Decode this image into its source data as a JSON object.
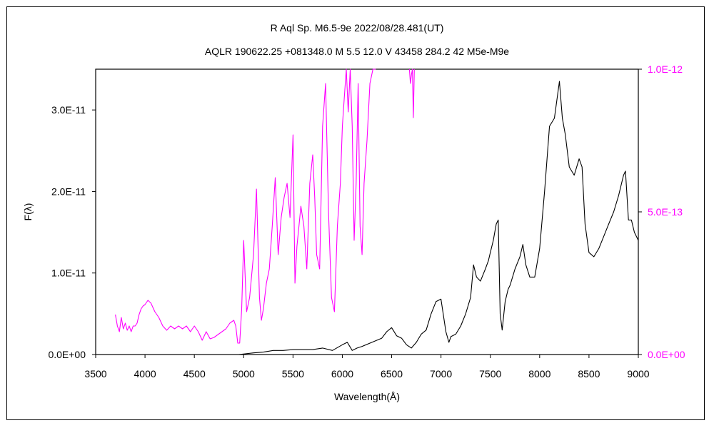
{
  "chart_data": {
    "type": "line",
    "title": "R Aql    Sp. M6.5-9e    2022/08/28.481(UT)",
    "subtitle": "AQLR 190622.25 +081348.0 M 5.5 12.0 V 43458 284.2 42 M5e-M9e",
    "xlabel": "Wavelength(Å)",
    "ylabel": "F(λ)",
    "xlim": [
      3500,
      9000
    ],
    "xticks": [
      "3500",
      "4000",
      "4500",
      "5000",
      "5500",
      "6000",
      "6500",
      "7000",
      "7500",
      "8000",
      "8500",
      "9000"
    ],
    "ylim_left": [
      0,
      3.5e-11
    ],
    "yticks_left": [
      "0.0E+00",
      "1.0E-11",
      "2.0E-11",
      "3.0E-11"
    ],
    "ylim_right": [
      0,
      1e-12
    ],
    "yticks_right": [
      "0.0E+00",
      "5.0E-13",
      "1.0E-12"
    ],
    "grid": false,
    "colors": {
      "left_series": "#000000",
      "right_series": "#ff00ff",
      "right_axis_labels": "#ff00ff"
    },
    "series": [
      {
        "axis": "left",
        "x": [
          4950,
          5100,
          5200,
          5300,
          5400,
          5500,
          5600,
          5700,
          5800,
          5900,
          6000,
          6050,
          6100,
          6150,
          6200,
          6300,
          6400,
          6450,
          6500,
          6550,
          6600,
          6650,
          6700,
          6750,
          6800,
          6850,
          6900,
          6950,
          7000,
          7050,
          7080,
          7100,
          7150,
          7200,
          7250,
          7300,
          7330,
          7360,
          7400,
          7450,
          7480,
          7500,
          7530,
          7560,
          7580,
          7600,
          7620,
          7650,
          7680,
          7700,
          7750,
          7800,
          7830,
          7860,
          7900,
          7950,
          8000,
          8050,
          8100,
          8150,
          8200,
          8230,
          8260,
          8300,
          8350,
          8400,
          8430,
          8460,
          8500,
          8550,
          8600,
          8650,
          8700,
          8750,
          8800,
          8850,
          8870,
          8900,
          8930,
          8960,
          9000
        ],
        "values": [
          0.0,
          2e-13,
          3e-13,
          5e-13,
          5e-13,
          6e-13,
          6e-13,
          6e-13,
          8e-13,
          5e-13,
          1.2e-12,
          1.5e-12,
          5e-13,
          8e-13,
          1e-12,
          1.5e-12,
          2e-12,
          2.8e-12,
          3.3e-12,
          2.3e-12,
          2e-12,
          1.2e-12,
          8e-13,
          1.5e-12,
          2.5e-12,
          3e-12,
          5e-12,
          6.5e-12,
          6.8e-12,
          2.8e-12,
          1.5e-12,
          2.2e-12,
          2.5e-12,
          3.5e-12,
          5e-12,
          7e-12,
          1.1e-11,
          9.5e-12,
          9e-12,
          1.05e-11,
          1.15e-11,
          1.25e-11,
          1.4e-11,
          1.6e-11,
          1.65e-11,
          5e-12,
          3e-12,
          6.5e-12,
          8e-12,
          8.5e-12,
          1.05e-11,
          1.2e-11,
          1.35e-11,
          1.1e-11,
          9.5e-12,
          9.5e-12,
          1.3e-11,
          2e-11,
          2.8e-11,
          2.9e-11,
          3.35e-11,
          2.9e-11,
          2.7e-11,
          2.3e-11,
          2.2e-11,
          2.4e-11,
          2.3e-11,
          1.6e-11,
          1.25e-11,
          1.2e-11,
          1.3e-11,
          1.45e-11,
          1.6e-11,
          1.75e-11,
          1.95e-11,
          2.2e-11,
          2.25e-11,
          1.65e-11,
          1.65e-11,
          1.5e-11,
          1.4e-11
        ]
      },
      {
        "axis": "right",
        "x": [
          3700,
          3720,
          3740,
          3760,
          3780,
          3800,
          3820,
          3840,
          3860,
          3880,
          3900,
          3920,
          3940,
          3960,
          3980,
          4000,
          4030,
          4060,
          4100,
          4140,
          4180,
          4220,
          4260,
          4300,
          4340,
          4380,
          4420,
          4460,
          4500,
          4540,
          4580,
          4620,
          4660,
          4700,
          4740,
          4780,
          4820,
          4860,
          4900,
          4920,
          4940,
          4960,
          4980,
          5000,
          5030,
          5060,
          5100,
          5130,
          5160,
          5180,
          5200,
          5230,
          5260,
          5290,
          5320,
          5350,
          5380,
          5410,
          5440,
          5470,
          5500,
          5520,
          5540,
          5560,
          5580,
          5610,
          5640,
          5670,
          5700,
          5720,
          5740,
          5770,
          5800,
          5830,
          5860,
          5890,
          5920,
          5950,
          5980,
          6000,
          6020,
          6040,
          6060,
          6080,
          6100,
          6120,
          6140,
          6160,
          6180,
          6200,
          6220,
          6250,
          6280,
          6310,
          6340
        ],
        "values": [
          1.4e-13,
          1e-13,
          8e-14,
          1.3e-13,
          9e-14,
          1.1e-13,
          8.5e-14,
          1e-13,
          8e-14,
          1e-13,
          1e-13,
          1.1e-13,
          1.4e-13,
          1.6e-13,
          1.7e-13,
          1.75e-13,
          1.9e-13,
          1.8e-13,
          1.5e-13,
          1.3e-13,
          1e-13,
          8.5e-14,
          1e-13,
          9e-14,
          1e-13,
          9e-14,
          1e-13,
          8e-14,
          1e-13,
          8e-14,
          5e-14,
          8e-14,
          5.5e-14,
          6e-14,
          7e-14,
          8e-14,
          9e-14,
          1.1e-13,
          1.2e-13,
          1e-13,
          4e-14,
          4e-14,
          1.6e-13,
          4e-13,
          1.5e-13,
          2e-13,
          3.5e-13,
          5.8e-13,
          2e-13,
          1.2e-13,
          1.6e-13,
          2.5e-13,
          3e-13,
          4.5e-13,
          6.2e-13,
          3.5e-13,
          4.8e-13,
          5.5e-13,
          6e-13,
          4.8e-13,
          7.7e-13,
          2.5e-13,
          3.8e-13,
          4.5e-13,
          5.2e-13,
          4.5e-13,
          3e-13,
          6e-13,
          7e-13,
          5.5e-13,
          3.5e-13,
          3e-13,
          8e-13,
          9.5e-13,
          5e-13,
          2e-13,
          1.5e-13,
          4.5e-13,
          6e-13,
          8e-13,
          9e-13,
          1e-12,
          8.5e-13,
          1e-12,
          8e-13,
          4e-13,
          6e-13,
          9.5e-13,
          4.5e-13,
          3.5e-13,
          6e-13,
          7.5e-13,
          9.5e-13,
          1e-12,
          1e-12
        ]
      },
      {
        "axis": "right",
        "x": [
          6680,
          6690,
          6700,
          6710,
          6720,
          6730
        ],
        "values": [
          1e-12,
          9.5e-13,
          9.8e-13,
          1e-12,
          8.3e-13,
          1e-12
        ]
      }
    ]
  }
}
